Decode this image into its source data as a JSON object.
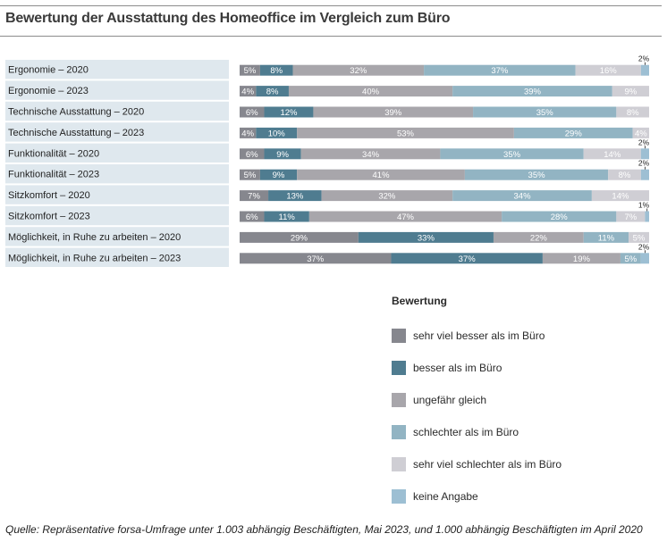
{
  "title": "Bewertung der Ausstattung des Homeoffice im Vergleich zum Büro",
  "source": "Quelle: Repräsentative forsa-Umfrage unter 1.003 abhängig Beschäftigten, Mai 2023, und 1.000 abhängig Beschäftigten im April 2020",
  "legend_title": "Bewertung",
  "chart_data": {
    "type": "bar",
    "stacked": true,
    "orientation": "horizontal",
    "categories": [
      "Ergonomie – 2020",
      "Ergonomie – 2023",
      "Technische Ausstattung – 2020",
      "Technische Ausstattung – 2023",
      "Funktionalität – 2020",
      "Funktionalität – 2023",
      "Sitzkomfort – 2020",
      "Sitzkomfort – 2023",
      "Möglichkeit, in Ruhe zu arbeiten – 2020",
      "Möglichkeit, in Ruhe zu arbeiten – 2023"
    ],
    "series": [
      {
        "name": "sehr viel besser als im Büro",
        "color": "#86878e",
        "values": [
          5,
          4,
          6,
          4,
          6,
          5,
          7,
          6,
          29,
          37
        ]
      },
      {
        "name": "besser als im Büro",
        "color": "#4f7c90",
        "values": [
          8,
          8,
          12,
          10,
          9,
          9,
          13,
          11,
          33,
          37
        ]
      },
      {
        "name": "ungefähr gleich",
        "color": "#a8a6ab",
        "values": [
          32,
          40,
          39,
          53,
          34,
          41,
          32,
          47,
          22,
          19
        ]
      },
      {
        "name": "schlechter als im Büro",
        "color": "#92b4c3",
        "values": [
          37,
          39,
          35,
          29,
          35,
          35,
          34,
          28,
          11,
          5
        ]
      },
      {
        "name": "sehr viel schlechter als im Büro",
        "color": "#cfced4",
        "values": [
          16,
          9,
          8,
          4,
          14,
          8,
          14,
          7,
          5,
          0
        ]
      },
      {
        "name": "keine Angabe",
        "color": "#9dbfd3",
        "values": [
          2,
          0,
          0,
          0,
          2,
          2,
          0,
          1,
          0,
          2
        ]
      }
    ],
    "xlim": [
      0,
      100
    ],
    "legend_position": "bottom-right"
  }
}
